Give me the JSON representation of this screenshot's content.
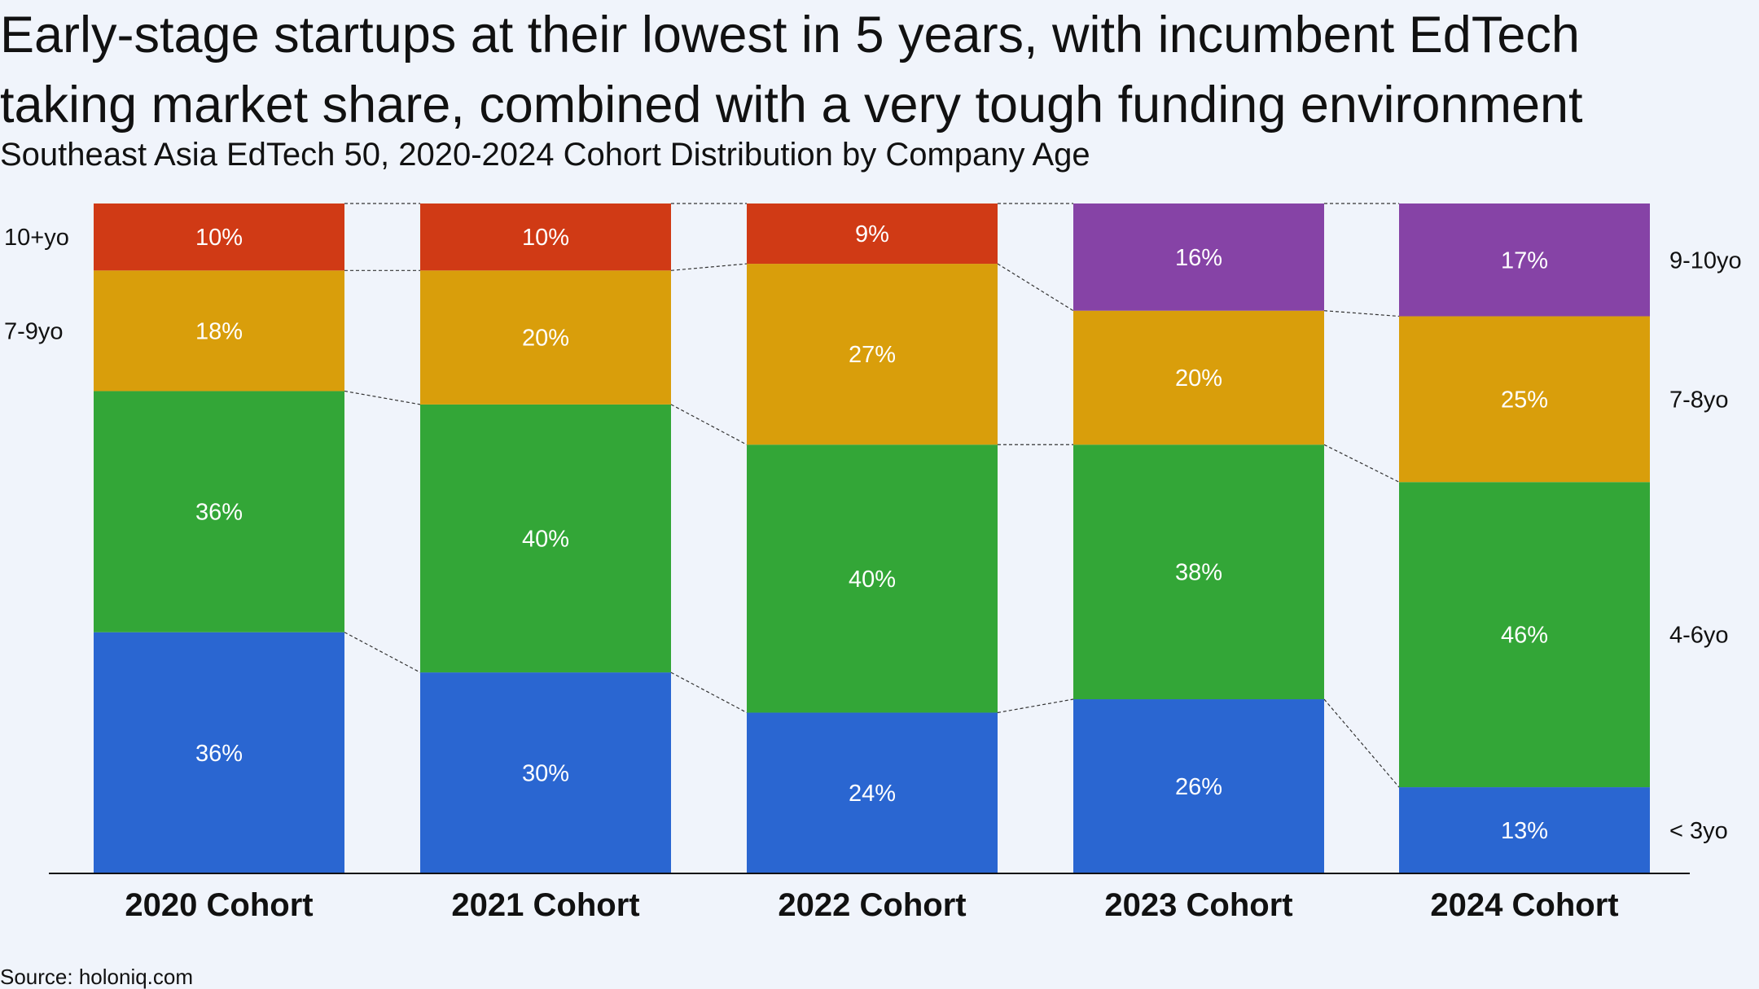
{
  "title_lines": [
    "Early-stage startups at their lowest in 5 years, with incumbent EdTech",
    "taking market share, combined with a very tough funding environment"
  ],
  "subtitle": "Southeast Asia EdTech 50, 2020-2024 Cohort Distribution by Company Age",
  "source": "Source: holoniq.com",
  "chart_data": {
    "type": "bar",
    "stacked": true,
    "normalized_percent": true,
    "categories": [
      "2020 Cohort",
      "2021 Cohort",
      "2022 Cohort",
      "2023 Cohort",
      "2024 Cohort"
    ],
    "series": [
      {
        "name": "< 3yo",
        "color": "#2a66d1",
        "values": [
          36,
          30,
          24,
          26,
          13
        ]
      },
      {
        "name": "4-6yo",
        "color": "#33a637",
        "values": [
          36,
          40,
          40,
          38,
          46
        ]
      },
      {
        "name": "7-9yo",
        "color": "#d99e0b",
        "values": [
          18,
          20,
          27,
          null,
          null
        ]
      },
      {
        "name": "7-8yo",
        "color": "#d99e0b",
        "values": [
          null,
          null,
          null,
          20,
          25
        ]
      },
      {
        "name": "10+yo",
        "color": "#d03a15",
        "values": [
          10,
          10,
          9,
          null,
          null
        ]
      },
      {
        "name": "9-10yo",
        "color": "#8643a6",
        "values": [
          null,
          null,
          null,
          16,
          17
        ]
      }
    ],
    "left_legend": [
      "10+yo",
      "7-9yo"
    ],
    "right_legend": [
      "9-10yo",
      "7-8yo",
      "4-6yo",
      "< 3yo"
    ],
    "connector_lines": "dashed",
    "grid": false
  }
}
